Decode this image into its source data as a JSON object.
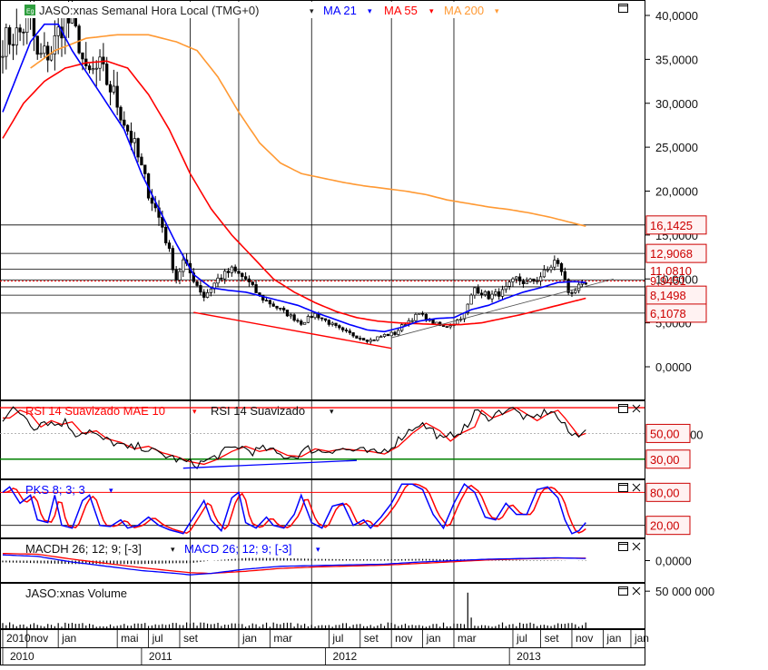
{
  "header": {
    "title": "JASO:xnas Semanal Hora Local (TMG+0)",
    "ma21_label": "MA 21",
    "ma55_label": "MA 55",
    "ma200_label": "MA 200"
  },
  "colors": {
    "price": "#000000",
    "ma21": "#0000ff",
    "ma55": "#ff0000",
    "ma200": "#ff9933",
    "support": "#008000",
    "tag_border": "#cc0000",
    "tag_text": "#cc0000",
    "tag_fill": "#fff2f2"
  },
  "time_axis": {
    "months": [
      {
        "label": "2010",
        "week": 0
      },
      {
        "label": "nov",
        "week": 7
      },
      {
        "label": "jan",
        "week": 16
      },
      {
        "label": "mai",
        "week": 33
      },
      {
        "label": "jul",
        "week": 42
      },
      {
        "label": "set",
        "week": 51
      },
      {
        "label": "jan",
        "week": 68
      },
      {
        "label": "mar",
        "week": 77
      },
      {
        "label": "jul",
        "week": 94
      },
      {
        "label": "set",
        "week": 103
      },
      {
        "label": "nov",
        "week": 112
      },
      {
        "label": "jan",
        "week": 121
      },
      {
        "label": "mar",
        "week": 130
      },
      {
        "label": "jul",
        "week": 147
      },
      {
        "label": "set",
        "week": 155
      },
      {
        "label": "nov",
        "week": 164
      },
      {
        "label": "jan",
        "week": 173
      },
      {
        "label": "jan",
        "week": 181
      }
    ],
    "years": [
      {
        "label": "2010",
        "week": 0
      },
      {
        "label": "2011",
        "week": 40
      },
      {
        "label": "2012",
        "week": 93
      },
      {
        "label": "2013",
        "week": 146
      }
    ],
    "vlines": [
      54,
      68,
      89,
      112,
      130
    ]
  },
  "chart_data": [
    {
      "type": "line",
      "title": "JASO:xnas Semanal Hora Local (TMG+0)",
      "ylim": [
        -4,
        42
      ],
      "y_ticks": [
        0,
        5,
        10,
        15,
        20,
        25,
        30,
        35,
        40
      ],
      "y_tick_labels": [
        "0,0000",
        "5,0000",
        "10,0000",
        "15,0000",
        "20,0000",
        "25,0000",
        "30,0000",
        "35,0000",
        "40,0000"
      ],
      "price_anchors": [
        [
          0,
          37
        ],
        [
          5,
          38
        ],
        [
          8,
          40
        ],
        [
          10,
          35
        ],
        [
          14,
          36
        ],
        [
          18,
          40
        ],
        [
          22,
          37
        ],
        [
          24,
          33
        ],
        [
          28,
          34
        ],
        [
          32,
          31
        ],
        [
          35,
          28
        ],
        [
          38,
          25
        ],
        [
          42,
          20
        ],
        [
          46,
          16
        ],
        [
          50,
          10
        ],
        [
          52,
          12
        ],
        [
          55,
          10
        ],
        [
          58,
          8
        ],
        [
          62,
          10
        ],
        [
          66,
          11
        ],
        [
          70,
          10
        ],
        [
          74,
          8
        ],
        [
          78,
          7
        ],
        [
          82,
          6
        ],
        [
          86,
          5
        ],
        [
          90,
          6
        ],
        [
          94,
          5
        ],
        [
          98,
          4
        ],
        [
          102,
          3.5
        ],
        [
          106,
          3
        ],
        [
          110,
          3.6
        ],
        [
          113,
          3.8
        ],
        [
          116,
          5
        ],
        [
          120,
          6
        ],
        [
          124,
          5
        ],
        [
          127,
          4.5
        ],
        [
          130,
          5
        ],
        [
          133,
          6
        ],
        [
          136,
          9
        ],
        [
          140,
          8
        ],
        [
          144,
          8.5
        ],
        [
          148,
          10
        ],
        [
          151,
          9.5
        ],
        [
          154,
          10
        ],
        [
          157,
          11
        ],
        [
          159,
          12
        ],
        [
          161,
          11
        ],
        [
          163,
          8.5
        ],
        [
          166,
          9
        ],
        [
          168,
          9.3
        ]
      ],
      "ma21_anchors": [
        [
          0,
          29
        ],
        [
          4,
          33
        ],
        [
          8,
          37
        ],
        [
          12,
          39
        ],
        [
          16,
          39
        ],
        [
          20,
          36
        ],
        [
          25,
          33
        ],
        [
          30,
          30
        ],
        [
          35,
          27
        ],
        [
          40,
          22
        ],
        [
          45,
          18
        ],
        [
          50,
          14
        ],
        [
          55,
          10.5
        ],
        [
          60,
          9
        ],
        [
          65,
          8.7
        ],
        [
          70,
          8.5
        ],
        [
          75,
          8
        ],
        [
          80,
          7.5
        ],
        [
          85,
          7
        ],
        [
          90,
          6.2
        ],
        [
          95,
          5.5
        ],
        [
          100,
          4.8
        ],
        [
          105,
          4.2
        ],
        [
          110,
          4
        ],
        [
          115,
          4.5
        ],
        [
          120,
          5.2
        ],
        [
          125,
          5.5
        ],
        [
          130,
          5.6
        ],
        [
          135,
          6.5
        ],
        [
          140,
          7
        ],
        [
          145,
          7.8
        ],
        [
          150,
          8.5
        ],
        [
          155,
          9
        ],
        [
          160,
          9.6
        ],
        [
          165,
          9.7
        ],
        [
          168,
          9.6
        ]
      ],
      "ma55_anchors": [
        [
          0,
          26
        ],
        [
          6,
          30
        ],
        [
          12,
          32.5
        ],
        [
          18,
          34
        ],
        [
          24,
          34.6
        ],
        [
          30,
          34.8
        ],
        [
          36,
          34
        ],
        [
          42,
          31
        ],
        [
          48,
          27
        ],
        [
          54,
          22
        ],
        [
          60,
          18
        ],
        [
          66,
          15
        ],
        [
          72,
          12.5
        ],
        [
          78,
          10
        ],
        [
          84,
          8.5
        ],
        [
          90,
          7.3
        ],
        [
          96,
          6.3
        ],
        [
          102,
          5.6
        ],
        [
          108,
          5.2
        ],
        [
          114,
          5
        ],
        [
          120,
          4.9
        ],
        [
          126,
          4.8
        ],
        [
          132,
          4.8
        ],
        [
          138,
          5
        ],
        [
          144,
          5.5
        ],
        [
          150,
          6
        ],
        [
          156,
          6.6
        ],
        [
          162,
          7.2
        ],
        [
          168,
          7.8
        ]
      ],
      "ma200_anchors": [
        [
          8,
          34
        ],
        [
          15,
          36
        ],
        [
          24,
          37.4
        ],
        [
          33,
          37.8
        ],
        [
          42,
          37.8
        ],
        [
          50,
          37
        ],
        [
          56,
          36
        ],
        [
          62,
          33
        ],
        [
          68,
          29
        ],
        [
          74,
          25.5
        ],
        [
          80,
          23.2
        ],
        [
          86,
          22
        ],
        [
          92,
          21.5
        ],
        [
          98,
          21
        ],
        [
          104,
          20.6
        ],
        [
          110,
          20.3
        ],
        [
          116,
          20
        ],
        [
          122,
          19.6
        ],
        [
          128,
          19
        ],
        [
          134,
          18.6
        ],
        [
          140,
          18.2
        ],
        [
          146,
          17.9
        ],
        [
          152,
          17.5
        ],
        [
          158,
          17
        ],
        [
          164,
          16.4
        ],
        [
          168,
          16
        ]
      ],
      "hlines": [
        16.1425,
        12.9068,
        11.1,
        9.9,
        9.1,
        8.1498,
        6.1078
      ],
      "tag_labels": [
        "16,1425",
        "12,9068",
        "8,1498",
        "6,1078"
      ],
      "tag_values": [
        16.1425,
        12.9068,
        8.1498,
        6.1078
      ],
      "partial_labels": [
        "11,0810",
        "9,9451"
      ],
      "partial_values": [
        11.081,
        9.9451
      ],
      "dotted_level": 9.75,
      "trendlines": [
        {
          "from": [
            55,
            6.2
          ],
          "to": [
            112,
            2.1
          ],
          "color": "#ff0000"
        },
        {
          "from": [
            112,
            3.3
          ],
          "to": [
            176,
            10
          ]
        }
      ]
    },
    {
      "type": "line",
      "title": "RSI 14 Suavizado MAE 10",
      "series": [
        {
          "name": "RSI 14 Suavizado MAE 10"
        },
        {
          "name": "RSI 14 Suavizado"
        }
      ],
      "ylim": [
        15,
        75
      ],
      "levels": [
        70,
        50,
        30
      ],
      "level_labels": [
        "50,00",
        "30,00"
      ],
      "partial_labels": [
        "50,00"
      ],
      "anchors": [
        [
          0,
          62
        ],
        [
          3,
          68
        ],
        [
          6,
          65
        ],
        [
          9,
          55
        ],
        [
          12,
          60
        ],
        [
          15,
          57
        ],
        [
          18,
          59
        ],
        [
          21,
          50
        ],
        [
          25,
          52
        ],
        [
          28,
          46
        ],
        [
          32,
          43
        ],
        [
          36,
          38
        ],
        [
          40,
          40
        ],
        [
          44,
          35
        ],
        [
          48,
          32
        ],
        [
          52,
          28
        ],
        [
          56,
          26
        ],
        [
          60,
          30
        ],
        [
          64,
          36
        ],
        [
          68,
          40
        ],
        [
          72,
          36
        ],
        [
          76,
          38
        ],
        [
          80,
          33
        ],
        [
          84,
          32
        ],
        [
          88,
          38
        ],
        [
          92,
          36
        ],
        [
          96,
          38
        ],
        [
          100,
          37
        ],
        [
          104,
          36
        ],
        [
          108,
          34
        ],
        [
          112,
          40
        ],
        [
          116,
          50
        ],
        [
          120,
          58
        ],
        [
          124,
          52
        ],
        [
          127,
          44
        ],
        [
          130,
          50
        ],
        [
          134,
          55
        ],
        [
          136,
          68
        ],
        [
          139,
          62
        ],
        [
          142,
          65
        ],
        [
          146,
          70
        ],
        [
          149,
          65
        ],
        [
          152,
          60
        ],
        [
          155,
          65
        ],
        [
          158,
          68
        ],
        [
          160,
          62
        ],
        [
          162,
          55
        ],
        [
          164,
          48
        ],
        [
          166,
          50
        ],
        [
          168,
          55
        ]
      ],
      "trendlines": [
        {
          "from": [
            52,
            23
          ],
          "to": [
            102,
            29
          ]
        }
      ]
    },
    {
      "type": "line",
      "title": "PKS 8; 3; 3",
      "ylim": [
        -2,
        102
      ],
      "levels": [
        80,
        20
      ],
      "level_labels": [
        "80,00",
        "20,00"
      ],
      "anchors": [
        [
          0,
          80
        ],
        [
          2,
          90
        ],
        [
          5,
          60
        ],
        [
          8,
          75
        ],
        [
          10,
          30
        ],
        [
          13,
          25
        ],
        [
          15,
          75
        ],
        [
          17,
          20
        ],
        [
          20,
          15
        ],
        [
          23,
          65
        ],
        [
          25,
          75
        ],
        [
          28,
          20
        ],
        [
          31,
          18
        ],
        [
          34,
          30
        ],
        [
          36,
          15
        ],
        [
          39,
          20
        ],
        [
          42,
          35
        ],
        [
          45,
          20
        ],
        [
          48,
          12
        ],
        [
          52,
          5
        ],
        [
          55,
          35
        ],
        [
          58,
          65
        ],
        [
          60,
          30
        ],
        [
          63,
          10
        ],
        [
          66,
          70
        ],
        [
          68,
          80
        ],
        [
          70,
          25
        ],
        [
          73,
          15
        ],
        [
          76,
          35
        ],
        [
          78,
          20
        ],
        [
          81,
          15
        ],
        [
          84,
          40
        ],
        [
          86,
          75
        ],
        [
          89,
          25
        ],
        [
          92,
          15
        ],
        [
          95,
          55
        ],
        [
          98,
          60
        ],
        [
          101,
          20
        ],
        [
          104,
          30
        ],
        [
          106,
          15
        ],
        [
          109,
          35
        ],
        [
          112,
          60
        ],
        [
          115,
          95
        ],
        [
          118,
          95
        ],
        [
          121,
          85
        ],
        [
          124,
          40
        ],
        [
          127,
          15
        ],
        [
          130,
          60
        ],
        [
          133,
          95
        ],
        [
          136,
          80
        ],
        [
          139,
          35
        ],
        [
          142,
          30
        ],
        [
          145,
          60
        ],
        [
          148,
          40
        ],
        [
          151,
          40
        ],
        [
          154,
          85
        ],
        [
          157,
          90
        ],
        [
          160,
          70
        ],
        [
          162,
          30
        ],
        [
          164,
          5
        ],
        [
          166,
          10
        ],
        [
          168,
          25
        ]
      ]
    },
    {
      "type": "line",
      "title": "MACDH 26; 12; 9; [-3]",
      "series": [
        {
          "name": "MACDH 26; 12; 9; [-3]"
        },
        {
          "name": "MACD 26; 12; 9; [-3]"
        }
      ],
      "ylim": [
        -1.5,
        1.5
      ],
      "y_tick_labels": [
        "0,0000"
      ],
      "y_ticks": [
        0
      ],
      "macd_anchors": [
        [
          0,
          0.4
        ],
        [
          10,
          0.3
        ],
        [
          20,
          -0.1
        ],
        [
          30,
          -0.4
        ],
        [
          40,
          -0.7
        ],
        [
          50,
          -0.9
        ],
        [
          54,
          -1.0
        ],
        [
          60,
          -0.9
        ],
        [
          70,
          -0.6
        ],
        [
          80,
          -0.4
        ],
        [
          90,
          -0.35
        ],
        [
          100,
          -0.3
        ],
        [
          110,
          -0.25
        ],
        [
          120,
          -0.1
        ],
        [
          130,
          0.0
        ],
        [
          140,
          0.1
        ],
        [
          150,
          0.15
        ],
        [
          160,
          0.2
        ],
        [
          168,
          0.15
        ]
      ],
      "signal_anchors": [
        [
          0,
          0.5
        ],
        [
          10,
          0.45
        ],
        [
          20,
          0.1
        ],
        [
          30,
          -0.2
        ],
        [
          40,
          -0.5
        ],
        [
          50,
          -0.75
        ],
        [
          54,
          -0.85
        ],
        [
          60,
          -0.9
        ],
        [
          70,
          -0.75
        ],
        [
          80,
          -0.55
        ],
        [
          90,
          -0.45
        ],
        [
          100,
          -0.38
        ],
        [
          110,
          -0.32
        ],
        [
          120,
          -0.2
        ],
        [
          130,
          -0.08
        ],
        [
          140,
          0.05
        ],
        [
          150,
          0.12
        ],
        [
          160,
          0.18
        ],
        [
          168,
          0.17
        ]
      ]
    },
    {
      "type": "bar",
      "title": "JASO:xnas Volume",
      "y_tick_labels": [
        "50 000 000"
      ],
      "y_ticks": [
        50000000
      ],
      "ylim": [
        0,
        60000000
      ],
      "spike": {
        "week": 134,
        "value": 48000000
      },
      "base_level": 5000000
    }
  ]
}
